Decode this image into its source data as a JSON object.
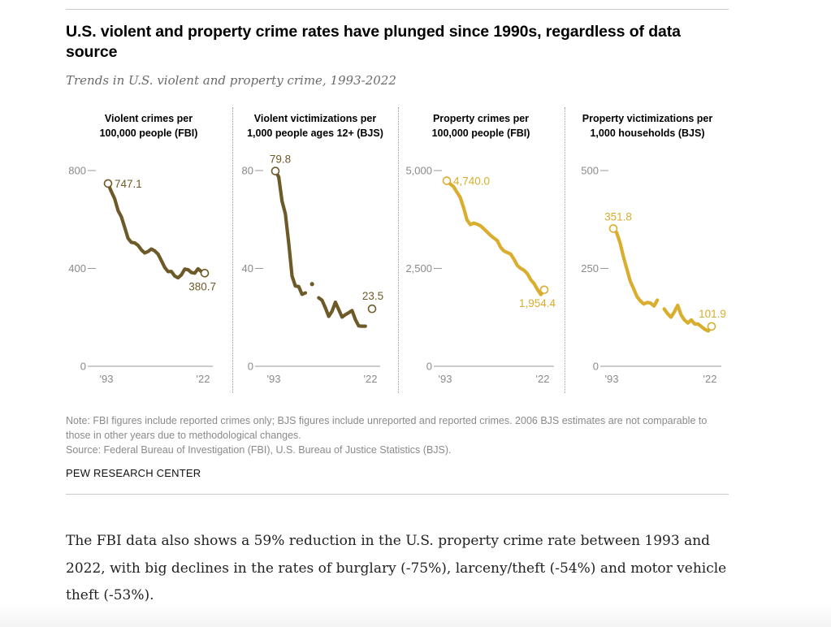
{
  "title": "U.S. violent and property crime rates have plunged since 1990s, regardless of data source",
  "subtitle": "Trends in U.S. violent and property crime, 1993-2022",
  "colors": {
    "violent": "#6e5a28",
    "property": "#d9ad2e",
    "axis": "#8a8a8a"
  },
  "chart_data": [
    {
      "type": "line",
      "title": "Violent crimes per 100,000 people (FBI)",
      "title_lines": [
        "Violent crimes per",
        "100,000 people (FBI)"
      ],
      "color_key": "violent",
      "ylim": [
        0,
        800
      ],
      "yticks": [
        0,
        400,
        800
      ],
      "ytick_labels": [
        "0",
        "400",
        "800"
      ],
      "xticks_labels": [
        "'93",
        "'22"
      ],
      "x": [
        1993,
        1994,
        1995,
        1996,
        1997,
        1998,
        1999,
        2000,
        2001,
        2002,
        2003,
        2004,
        2005,
        2006,
        2007,
        2008,
        2009,
        2010,
        2011,
        2012,
        2013,
        2014,
        2015,
        2016,
        2017,
        2018,
        2019,
        2020,
        2021,
        2022
      ],
      "values": [
        747.1,
        713.6,
        684.5,
        636.6,
        611.0,
        567.6,
        523.0,
        506.5,
        504.5,
        494.4,
        475.8,
        463.2,
        469.0,
        479.3,
        471.8,
        458.6,
        431.9,
        404.5,
        387.1,
        387.8,
        369.1,
        361.6,
        373.7,
        397.1,
        394.9,
        383.4,
        380.8,
        398.5,
        387.0,
        380.7
      ],
      "start_label": "747.1",
      "end_label": "380.7"
    },
    {
      "type": "line",
      "title": "Violent victimizations per 1,000 people ages 12+ (BJS)",
      "title_lines": [
        "Violent victimizations per",
        "1,000 people ages 12+ (BJS)"
      ],
      "color_key": "violent",
      "ylim": [
        0,
        80
      ],
      "yticks": [
        0,
        40,
        80
      ],
      "ytick_labels": [
        "0",
        "40",
        "80"
      ],
      "xticks_labels": [
        "'93",
        "'22"
      ],
      "x": [
        1993,
        1994,
        1995,
        1996,
        1997,
        1998,
        1999,
        2000,
        2001,
        2002,
        2003,
        2004,
        2005,
        2006,
        2007,
        2008,
        2009,
        2010,
        2011,
        2012,
        2013,
        2014,
        2015,
        2016,
        2017,
        2018,
        2019,
        2020,
        2021,
        2022
      ],
      "values": [
        79.8,
        77.4,
        67.5,
        62.3,
        50.4,
        36.9,
        32.8,
        32.6,
        29.4,
        30.0,
        null,
        33.6,
        null,
        28.0,
        27.0,
        23.9,
        20.4,
        22.5,
        26.2,
        23.2,
        20.1,
        21.1,
        21.9,
        22.8,
        19.1,
        16.5,
        16.4,
        16.4,
        null,
        23.5
      ],
      "note": "2006 estimate shown as isolated point; gaps around it",
      "start_label": "79.8",
      "end_label": "23.5"
    },
    {
      "type": "line",
      "title": "Property crimes per 100,000 people (FBI)",
      "title_lines": [
        "Property crimes per",
        "100,000 people (FBI)"
      ],
      "color_key": "property",
      "ylim": [
        0,
        5000
      ],
      "yticks": [
        0,
        2500,
        5000
      ],
      "ytick_labels": [
        "0",
        "2,500",
        "5,000"
      ],
      "xticks_labels": [
        "'93",
        "'22"
      ],
      "x": [
        1993,
        1994,
        1995,
        1996,
        1997,
        1998,
        1999,
        2000,
        2001,
        2002,
        2003,
        2004,
        2005,
        2006,
        2007,
        2008,
        2009,
        2010,
        2011,
        2012,
        2013,
        2014,
        2015,
        2016,
        2017,
        2018,
        2019,
        2020,
        2021,
        2022
      ],
      "values": [
        4740.0,
        4660.2,
        4590.5,
        4451.0,
        4316.3,
        4052.5,
        3743.6,
        3618.3,
        3658.1,
        3630.6,
        3591.2,
        3514.1,
        3431.5,
        3346.6,
        3276.4,
        3214.6,
        3041.3,
        2945.9,
        2905.4,
        2868.0,
        2733.6,
        2574.1,
        2500.5,
        2451.6,
        2362.2,
        2209.8,
        2109.9,
        1958.2,
        1832.3,
        1954.4
      ],
      "start_label": "4,740.0",
      "end_label": "1,954.4"
    },
    {
      "type": "line",
      "title": "Property victimizations per 1,000 households (BJS)",
      "title_lines": [
        "Property victimizations per",
        "1,000 households (BJS)"
      ],
      "color_key": "property",
      "ylim": [
        0,
        500
      ],
      "yticks": [
        0,
        250,
        500
      ],
      "ytick_labels": [
        "0",
        "250",
        "500"
      ],
      "xticks_labels": [
        "'93",
        "'22"
      ],
      "x": [
        1993,
        1994,
        1995,
        1996,
        1997,
        1998,
        1999,
        2000,
        2001,
        2002,
        2003,
        2004,
        2005,
        2006,
        2007,
        2008,
        2009,
        2010,
        2011,
        2012,
        2013,
        2014,
        2015,
        2016,
        2017,
        2018,
        2019,
        2020,
        2021,
        2022
      ],
      "values": [
        351.8,
        341.2,
        315.5,
        279.5,
        248.3,
        217.4,
        198.0,
        178.1,
        166.9,
        159.0,
        163.2,
        161.4,
        154.0,
        169.0,
        null,
        146.5,
        134.7,
        125.4,
        138.7,
        155.8,
        131.4,
        118.1,
        110.7,
        118.6,
        108.2,
        108.2,
        101.4,
        94.5,
        90.2,
        101.9
      ],
      "start_label": "351.8",
      "end_label": "101.9"
    }
  ],
  "note_text": "Note: FBI figures include reported crimes only; BJS figures include unreported and reported crimes. 2006 BJS estimates are not comparable to those in other years due to methodological changes.",
  "source_text": "Source: Federal Bureau of Investigation (FBI), U.S. Bureau of Justice Statistics (BJS).",
  "brand": "PEW RESEARCH CENTER",
  "body_paragraph": "The FBI data also shows a 59% reduction in the U.S. property crime rate between 1993 and 2022, with big declines in the rates of burglary (-75%), larceny/theft (-54%) and motor vehicle theft (-53%)."
}
